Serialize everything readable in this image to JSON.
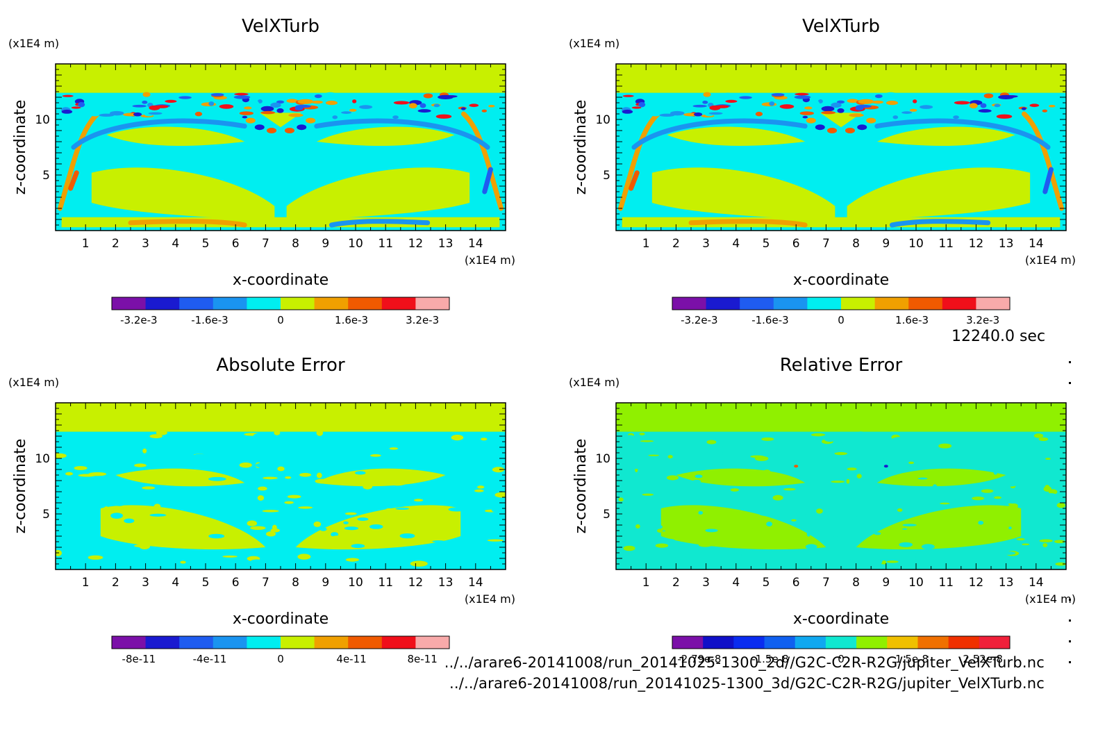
{
  "time_label": "12240.0 sec",
  "footer": {
    "line1": "../../arare6-20141008/run_20141025-1300_2d//G2C-C2R-R2G/jupiter_VelXTurb.nc",
    "line2": "../../arare6-20141008/run_20141025-1300_3d/G2C-C2R-R2G/jupiter_VelXTurb.nc"
  },
  "chart_data": [
    {
      "type": "heatmap",
      "title": "VelXTurb",
      "xlabel": "x-coordinate",
      "ylabel": "z-coordinate",
      "x_unit": "(x1E4 m)",
      "y_unit": "(x1E4 m)",
      "xlim": [
        0,
        15
      ],
      "ylim": [
        0,
        15
      ],
      "x_ticks": [
        1,
        2,
        3,
        4,
        5,
        6,
        7,
        8,
        9,
        10,
        11,
        12,
        13,
        14
      ],
      "y_ticks": [
        5,
        10
      ],
      "colorbar": {
        "colors": [
          "#7b10a8",
          "#1a1ad0",
          "#1f5cf0",
          "#1a94f0",
          "#00eef0",
          "#c8f000",
          "#f0a000",
          "#f05a00",
          "#f00f1a",
          "#f8aaaa"
        ],
        "tick_labels": [
          "-3.2e-3",
          "-1.6e-3",
          "0",
          "1.6e-3",
          "3.2e-3"
        ]
      },
      "pattern": "velocity"
    },
    {
      "type": "heatmap",
      "title": "VelXTurb",
      "xlabel": "x-coordinate",
      "ylabel": "z-coordinate",
      "x_unit": "(x1E4 m)",
      "y_unit": "(x1E4 m)",
      "xlim": [
        0,
        15
      ],
      "ylim": [
        0,
        15
      ],
      "x_ticks": [
        1,
        2,
        3,
        4,
        5,
        6,
        7,
        8,
        9,
        10,
        11,
        12,
        13,
        14
      ],
      "y_ticks": [
        5,
        10
      ],
      "colorbar": {
        "colors": [
          "#7b10a8",
          "#1a1ad0",
          "#1f5cf0",
          "#1a94f0",
          "#00eef0",
          "#c8f000",
          "#f0a000",
          "#f05a00",
          "#f00f1a",
          "#f8aaaa"
        ],
        "tick_labels": [
          "-3.2e-3",
          "-1.6e-3",
          "0",
          "1.6e-3",
          "3.2e-3"
        ]
      },
      "pattern": "velocity"
    },
    {
      "type": "heatmap",
      "title": "Absolute Error",
      "xlabel": "x-coordinate",
      "ylabel": "z-coordinate",
      "x_unit": "(x1E4 m)",
      "y_unit": "(x1E4 m)",
      "xlim": [
        0,
        15
      ],
      "ylim": [
        0,
        15
      ],
      "x_ticks": [
        1,
        2,
        3,
        4,
        5,
        6,
        7,
        8,
        9,
        10,
        11,
        12,
        13,
        14
      ],
      "y_ticks": [
        5,
        10
      ],
      "colorbar": {
        "colors": [
          "#7b10a8",
          "#1a1ad0",
          "#1f5cf0",
          "#1a94f0",
          "#00eef0",
          "#c8f000",
          "#f0a000",
          "#f05a00",
          "#f00f1a",
          "#f8aaaa"
        ],
        "tick_labels": [
          "-8e-11",
          "-4e-11",
          "0",
          "4e-11",
          "8e-11"
        ]
      },
      "pattern": "abs"
    },
    {
      "type": "heatmap",
      "title": "Relative Error",
      "xlabel": "x-coordinate",
      "ylabel": "z-coordinate",
      "x_unit": "(x1E4 m)",
      "y_unit": "(x1E4 m)",
      "xlim": [
        0,
        15
      ],
      "ylim": [
        0,
        15
      ],
      "x_ticks": [
        1,
        2,
        3,
        4,
        5,
        6,
        7,
        8,
        9,
        10,
        11,
        12,
        13,
        14
      ],
      "y_ticks": [
        5,
        10
      ],
      "colorbar": {
        "colors": [
          "#7b10a8",
          "#1010c8",
          "#0a2cf0",
          "#1060f0",
          "#10a8f0",
          "#10e8d0",
          "#90f000",
          "#f0c000",
          "#f07000",
          "#f03000",
          "#f0203a"
        ],
        "tick_labels": [
          "-2.79e-8",
          "-1.5e-8",
          "0",
          "1.5e-8",
          "2.52e-8"
        ]
      },
      "pattern": "rel"
    }
  ]
}
